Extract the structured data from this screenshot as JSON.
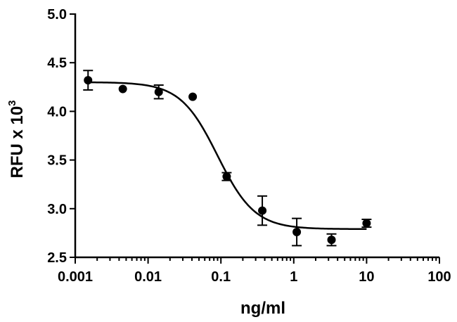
{
  "chart_data": {
    "type": "scatter",
    "title": "",
    "xlabel": "ng/ml",
    "ylabel_main": "RFU x 10",
    "ylabel_sup": "3",
    "x_scale": "log",
    "xlim": [
      0.001,
      100
    ],
    "ylim": [
      2.5,
      5.0
    ],
    "x_ticks": [
      0.001,
      0.01,
      0.1,
      1,
      10,
      100
    ],
    "x_tick_labels": [
      "0.001",
      "0.01",
      "0.1",
      "1",
      "10",
      "100"
    ],
    "y_ticks": [
      2.5,
      3.0,
      3.5,
      4.0,
      4.5,
      5.0
    ],
    "y_tick_labels": [
      "2.5",
      "3.0",
      "3.5",
      "4.0",
      "4.5",
      "5.0"
    ],
    "grid": false,
    "legend": "none",
    "series": [
      {
        "marker": "circle",
        "x": [
          0.0015,
          0.0045,
          0.014,
          0.041,
          0.12,
          0.37,
          1.1,
          3.3,
          10
        ],
        "y": [
          4.32,
          4.23,
          4.2,
          4.15,
          3.33,
          2.98,
          2.76,
          2.68,
          2.85
        ],
        "error": [
          0.1,
          0.0,
          0.07,
          0.0,
          0.04,
          0.15,
          0.14,
          0.06,
          0.04
        ]
      }
    ],
    "fit": {
      "type": "sigmoid-4pl",
      "top": 4.3,
      "bottom": 2.79,
      "ec50": 0.09,
      "hill_slope": 1.7
    },
    "colors": {
      "axis": "#000000",
      "marker": "#000000",
      "curve": "#000000"
    }
  }
}
